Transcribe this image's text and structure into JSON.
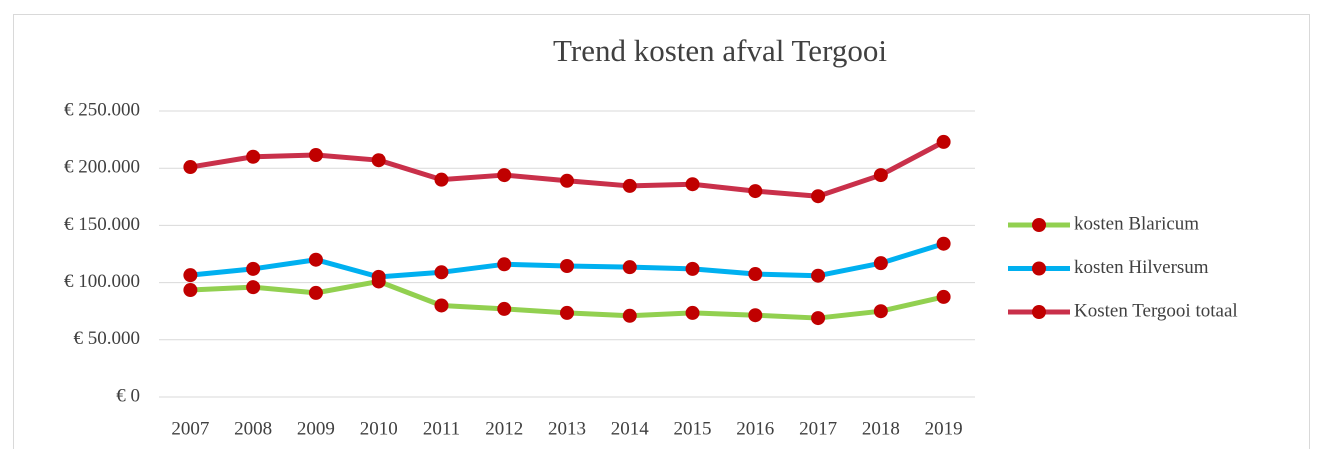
{
  "chart_data": {
    "type": "line",
    "title": "Trend kosten afval Tergooi",
    "categories": [
      "2007",
      "2008",
      "2009",
      "2010",
      "2011",
      "2012",
      "2013",
      "2014",
      "2015",
      "2016",
      "2017",
      "2018",
      "2019"
    ],
    "series": [
      {
        "name": "kosten Blaricum",
        "color": "#92d050",
        "marker_color": "#c00000",
        "values": [
          93500,
          96000,
          91000,
          101000,
          80000,
          77000,
          73500,
          71000,
          73500,
          71500,
          69000,
          75000,
          87500
        ]
      },
      {
        "name": "kosten Hilversum",
        "color": "#00b0f0",
        "marker_color": "#c00000",
        "values": [
          106500,
          112000,
          120000,
          105000,
          109000,
          116000,
          114500,
          113500,
          112000,
          107500,
          106000,
          117000,
          134000
        ]
      },
      {
        "name": "Kosten Tergooi totaal",
        "color": "#c9304a",
        "marker_color": "#c00000",
        "values": [
          201000,
          210000,
          211500,
          207000,
          190000,
          194000,
          189000,
          184500,
          186000,
          180000,
          175500,
          194000,
          223000
        ]
      }
    ],
    "ylim": [
      0,
      250000
    ],
    "yticks": [
      {
        "value": 0,
        "label": "€ 0"
      },
      {
        "value": 50000,
        "label": "€ 50.000"
      },
      {
        "value": 100000,
        "label": "€ 100.000"
      },
      {
        "value": 150000,
        "label": "€ 150.000"
      },
      {
        "value": 200000,
        "label": "€ 200.000"
      },
      {
        "value": 250000,
        "label": "€ 250.000"
      }
    ],
    "grid": true,
    "legend": "right"
  }
}
